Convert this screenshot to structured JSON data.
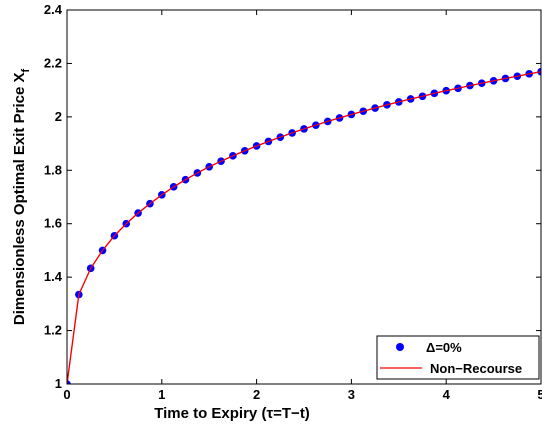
{
  "chart_data": {
    "type": "line",
    "xlabel": "Time to Expiry (τ=T−t)",
    "ylabel": "Dimensionless Optimal Exit Price X",
    "ylabel_subscript": "f",
    "xlim": [
      0,
      5
    ],
    "ylim": [
      1,
      2.4
    ],
    "xticks": [
      "0",
      "1",
      "2",
      "3",
      "4",
      "5"
    ],
    "yticks": [
      "1",
      "1.2",
      "1.4",
      "1.6",
      "1.8",
      "2",
      "2.2",
      "2.4"
    ],
    "grid": false,
    "legend_position": "bottom-right",
    "series": [
      {
        "name": "Δ=0%",
        "style": "markers",
        "color": "#0000ff",
        "x": [
          0,
          0.125,
          0.25,
          0.375,
          0.5,
          0.625,
          0.75,
          0.875,
          1.0,
          1.125,
          1.25,
          1.375,
          1.5,
          1.625,
          1.75,
          1.875,
          2.0,
          2.125,
          2.25,
          2.375,
          2.5,
          2.625,
          2.75,
          2.875,
          3.0,
          3.125,
          3.25,
          3.375,
          3.5,
          3.625,
          3.75,
          3.875,
          4.0,
          4.125,
          4.25,
          4.375,
          4.5,
          4.625,
          4.75,
          4.875,
          5.0
        ],
        "values": [
          1.0,
          1.335,
          1.433,
          1.5,
          1.555,
          1.6,
          1.64,
          1.675,
          1.708,
          1.738,
          1.765,
          1.79,
          1.813,
          1.834,
          1.854,
          1.873,
          1.891,
          1.908,
          1.924,
          1.94,
          1.955,
          1.969,
          1.983,
          1.996,
          2.009,
          2.021,
          2.033,
          2.045,
          2.056,
          2.067,
          2.077,
          2.088,
          2.098,
          2.107,
          2.117,
          2.126,
          2.135,
          2.144,
          2.152,
          2.161,
          2.169
        ]
      },
      {
        "name": "Non−Recourse",
        "style": "line",
        "color": "#ff0000",
        "x": [
          0,
          0.125,
          0.25,
          0.375,
          0.5,
          0.625,
          0.75,
          0.875,
          1.0,
          1.125,
          1.25,
          1.375,
          1.5,
          1.625,
          1.75,
          1.875,
          2.0,
          2.125,
          2.25,
          2.375,
          2.5,
          2.625,
          2.75,
          2.875,
          3.0,
          3.125,
          3.25,
          3.375,
          3.5,
          3.625,
          3.75,
          3.875,
          4.0,
          4.125,
          4.25,
          4.375,
          4.5,
          4.625,
          4.75,
          4.875,
          5.0
        ],
        "values": [
          1.0,
          1.335,
          1.433,
          1.5,
          1.555,
          1.6,
          1.64,
          1.675,
          1.708,
          1.738,
          1.765,
          1.79,
          1.813,
          1.834,
          1.854,
          1.873,
          1.891,
          1.908,
          1.924,
          1.94,
          1.955,
          1.969,
          1.983,
          1.996,
          2.009,
          2.021,
          2.033,
          2.045,
          2.056,
          2.067,
          2.077,
          2.088,
          2.098,
          2.107,
          2.117,
          2.126,
          2.135,
          2.144,
          2.152,
          2.161,
          2.169
        ]
      }
    ]
  }
}
